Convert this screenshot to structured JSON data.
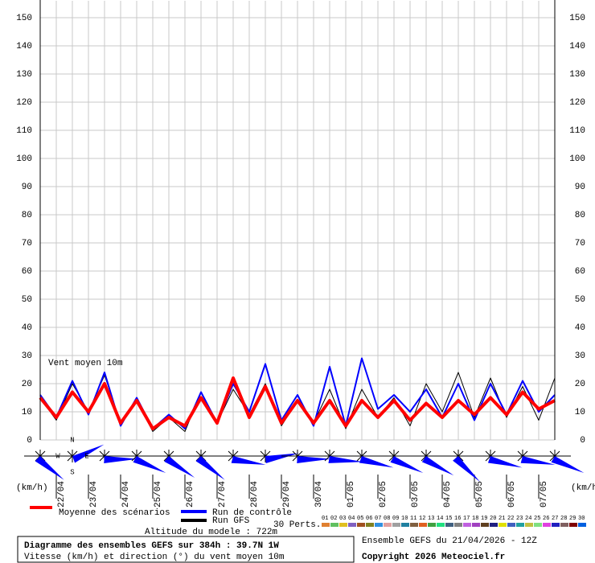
{
  "chart_data": {
    "type": "line",
    "y_axis_title": "Vent moyen 10m",
    "unit_left": "(km/h)",
    "unit_right": "(km/h)",
    "x": [
      0,
      12,
      24,
      36,
      48,
      60,
      72,
      84,
      96,
      108,
      120,
      132,
      144,
      156,
      168,
      180,
      192,
      204,
      216,
      228,
      240,
      252,
      264,
      276,
      288,
      300,
      312,
      324,
      336,
      348,
      360,
      372,
      384
    ],
    "xlim": [
      0,
      384
    ],
    "xticks": [
      {
        "value": 12,
        "label": "22/04"
      },
      {
        "value": 36,
        "label": "23/04"
      },
      {
        "value": 60,
        "label": "24/04"
      },
      {
        "value": 84,
        "label": "25/04"
      },
      {
        "value": 108,
        "label": "26/04"
      },
      {
        "value": 132,
        "label": "27/04"
      },
      {
        "value": 156,
        "label": "28/04"
      },
      {
        "value": 180,
        "label": "29/04"
      },
      {
        "value": 204,
        "label": "30/04"
      },
      {
        "value": 228,
        "label": "01/05"
      },
      {
        "value": 252,
        "label": "02/05"
      },
      {
        "value": 276,
        "label": "03/05"
      },
      {
        "value": 300,
        "label": "04/05"
      },
      {
        "value": 324,
        "label": "05/05"
      },
      {
        "value": 348,
        "label": "06/05"
      },
      {
        "value": 372,
        "label": "07/05"
      }
    ],
    "ylim": [
      0,
      156
    ],
    "yticks": [
      0,
      10,
      20,
      30,
      40,
      50,
      60,
      70,
      80,
      90,
      100,
      110,
      120,
      130,
      140,
      150
    ],
    "grid": true,
    "series": [
      {
        "name": "Moyenne des scénarios",
        "color": "#ff0000",
        "width": 4,
        "values": [
          15,
          8,
          17,
          10,
          20,
          6,
          14,
          4,
          8,
          5,
          15,
          6,
          22,
          8,
          19,
          6,
          14,
          6,
          14,
          5,
          14,
          8,
          14,
          7,
          13,
          8,
          14,
          9,
          15,
          9,
          17,
          11,
          14
        ]
      },
      {
        "name": "Run de contrôle",
        "color": "#0000ff",
        "width": 2,
        "values": [
          16,
          8,
          21,
          9,
          24,
          5,
          15,
          4,
          9,
          4,
          17,
          6,
          20,
          10,
          27,
          7,
          16,
          5,
          26,
          5,
          29,
          11,
          16,
          10,
          18,
          8,
          20,
          7,
          20,
          9,
          21,
          10,
          16
        ]
      },
      {
        "name": "Run GFS",
        "color": "#000000",
        "width": 1,
        "values": [
          15,
          7,
          20,
          10,
          23,
          6,
          14,
          3,
          8,
          3,
          17,
          6,
          18,
          9,
          20,
          5,
          14,
          6,
          18,
          4,
          18,
          8,
          15,
          5,
          20,
          10,
          24,
          8,
          22,
          8,
          19,
          7,
          22
        ]
      }
    ],
    "wind_hours": [
      0,
      24,
      48,
      72,
      96,
      120,
      144,
      168,
      192,
      216,
      240,
      264,
      288,
      312,
      336,
      360,
      384
    ],
    "wind_direction_deg": [
      315,
      250,
      275,
      300,
      310,
      315,
      285,
      265,
      275,
      280,
      290,
      300,
      305,
      320,
      290,
      285,
      300
    ],
    "wind_color": "#0000ff",
    "compass": [
      "N",
      "E",
      "S",
      "W"
    ],
    "perts_title": "30 Perts.",
    "perturbations": [
      {
        "label": "01",
        "color": "#e08030"
      },
      {
        "label": "02",
        "color": "#60c060"
      },
      {
        "label": "03",
        "color": "#e0c020"
      },
      {
        "label": "04",
        "color": "#8060c0"
      },
      {
        "label": "05",
        "color": "#a05020"
      },
      {
        "label": "06",
        "color": "#808020"
      },
      {
        "label": "07",
        "color": "#3090e0"
      },
      {
        "label": "08",
        "color": "#e0a0a0"
      },
      {
        "label": "09",
        "color": "#a0a0a0"
      },
      {
        "label": "10",
        "color": "#2080a0"
      },
      {
        "label": "11",
        "color": "#806040"
      },
      {
        "label": "12",
        "color": "#e06020"
      },
      {
        "label": "13",
        "color": "#40a040"
      },
      {
        "label": "14",
        "color": "#20e080"
      },
      {
        "label": "15",
        "color": "#406080"
      },
      {
        "label": "16",
        "color": "#808080"
      },
      {
        "label": "17",
        "color": "#c060e0"
      },
      {
        "label": "18",
        "color": "#a040c0"
      },
      {
        "label": "19",
        "color": "#604020"
      },
      {
        "label": "20",
        "color": "#202080"
      },
      {
        "label": "21",
        "color": "#e0e000"
      },
      {
        "label": "22",
        "color": "#4060c0"
      },
      {
        "label": "23",
        "color": "#20a0a0"
      },
      {
        "label": "24",
        "color": "#c0c040"
      },
      {
        "label": "25",
        "color": "#80e080"
      },
      {
        "label": "26",
        "color": "#e040e0"
      },
      {
        "label": "27",
        "color": "#2020c0"
      },
      {
        "label": "28",
        "color": "#806060"
      },
      {
        "label": "29",
        "color": "#800000"
      },
      {
        "label": "30",
        "color": "#0060e0"
      }
    ],
    "altitude": "Altitude du modele : 722m",
    "title": "Diagramme des ensembles GEFS sur 384h : 39.7N 1W",
    "subtitle": "Vitesse (km/h) et direction (°) du vent moyen 10m",
    "run_info": "Ensemble GEFS du 21/04/2026 - 12Z",
    "copyright": "Copyright 2026 Meteociel.fr"
  }
}
